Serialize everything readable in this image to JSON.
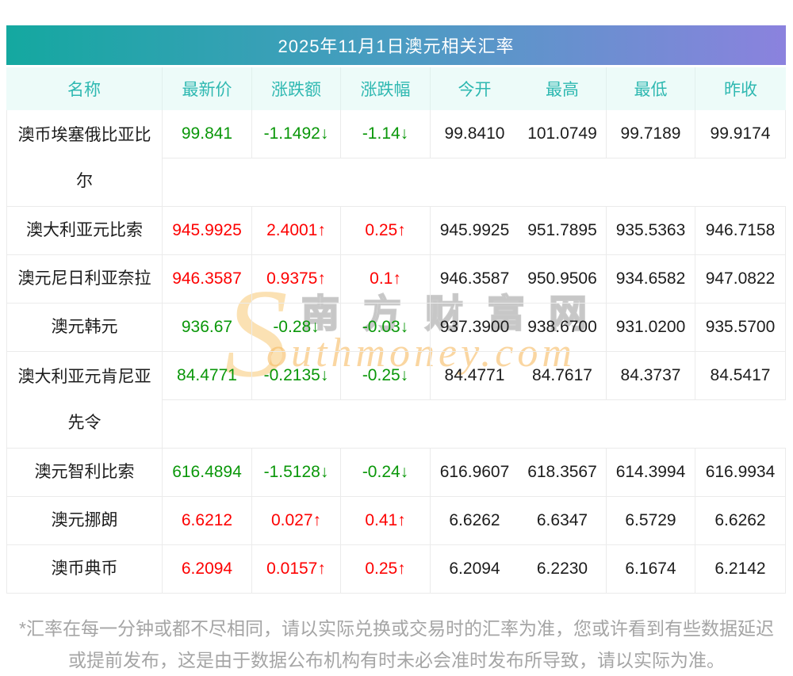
{
  "title": "2025年11月1日澳元相关汇率",
  "columns": [
    "名称",
    "最新价",
    "涨跌额",
    "涨跌幅",
    "今开",
    "最高",
    "最低",
    "昨收"
  ],
  "rows": [
    {
      "name": "澳币埃塞俄比亚比尔",
      "latest": "99.841",
      "change": "-1.1492↓",
      "pct": "-1.14↓",
      "open": "99.8410",
      "high": "101.0749",
      "low": "99.7189",
      "prev": "99.9174",
      "trend": "down"
    },
    {
      "name": "澳大利亚元比索",
      "latest": "945.9925",
      "change": "2.4001↑",
      "pct": "0.25↑",
      "open": "945.9925",
      "high": "951.7895",
      "low": "935.5363",
      "prev": "946.7158",
      "trend": "up"
    },
    {
      "name": "澳元尼日利亚奈拉",
      "latest": "946.3587",
      "change": "0.9375↑",
      "pct": "0.1↑",
      "open": "946.3587",
      "high": "950.9506",
      "low": "934.6582",
      "prev": "947.0822",
      "trend": "up"
    },
    {
      "name": "澳元韩元",
      "latest": "936.67",
      "change": "-0.28↓",
      "pct": "-0.03↓",
      "open": "937.3900",
      "high": "938.6700",
      "low": "931.0200",
      "prev": "935.5700",
      "trend": "down"
    },
    {
      "name": "澳大利亚元肯尼亚先令",
      "latest": "84.4771",
      "change": "-0.2135↓",
      "pct": "-0.25↓",
      "open": "84.4771",
      "high": "84.7617",
      "low": "84.3737",
      "prev": "84.5417",
      "trend": "down"
    },
    {
      "name": "澳元智利比索",
      "latest": "616.4894",
      "change": "-1.5128↓",
      "pct": "-0.24↓",
      "open": "616.9607",
      "high": "618.3567",
      "low": "614.3994",
      "prev": "616.9934",
      "trend": "down"
    },
    {
      "name": "澳元挪朗",
      "latest": "6.6212",
      "change": "0.027↑",
      "pct": "0.41↑",
      "open": "6.6262",
      "high": "6.6347",
      "low": "6.5729",
      "prev": "6.6262",
      "trend": "up"
    },
    {
      "name": "澳币典币",
      "latest": "6.2094",
      "change": "0.0157↑",
      "pct": "0.25↑",
      "open": "6.2094",
      "high": "6.2230",
      "low": "6.1674",
      "prev": "6.2142",
      "trend": "up"
    }
  ],
  "watermark": {
    "s": "S",
    "chinese": "南方财富网",
    "english": "outhmoney.com"
  },
  "footnote": "*汇率在每一分钟或都不尽相同，请以实际兑换或交易时的汇率为准，您或许看到有些数据延迟或提前发布，这是由于数据公布机构有时未必会准时发布所导致，请以实际为准。",
  "colors": {
    "up": "#fd0101",
    "down": "#0a9709",
    "gradient_start": "#14a8a0",
    "gradient_end": "#8b82de",
    "header_text": "#2eb8b1",
    "header_bg": "#edfbf9"
  }
}
